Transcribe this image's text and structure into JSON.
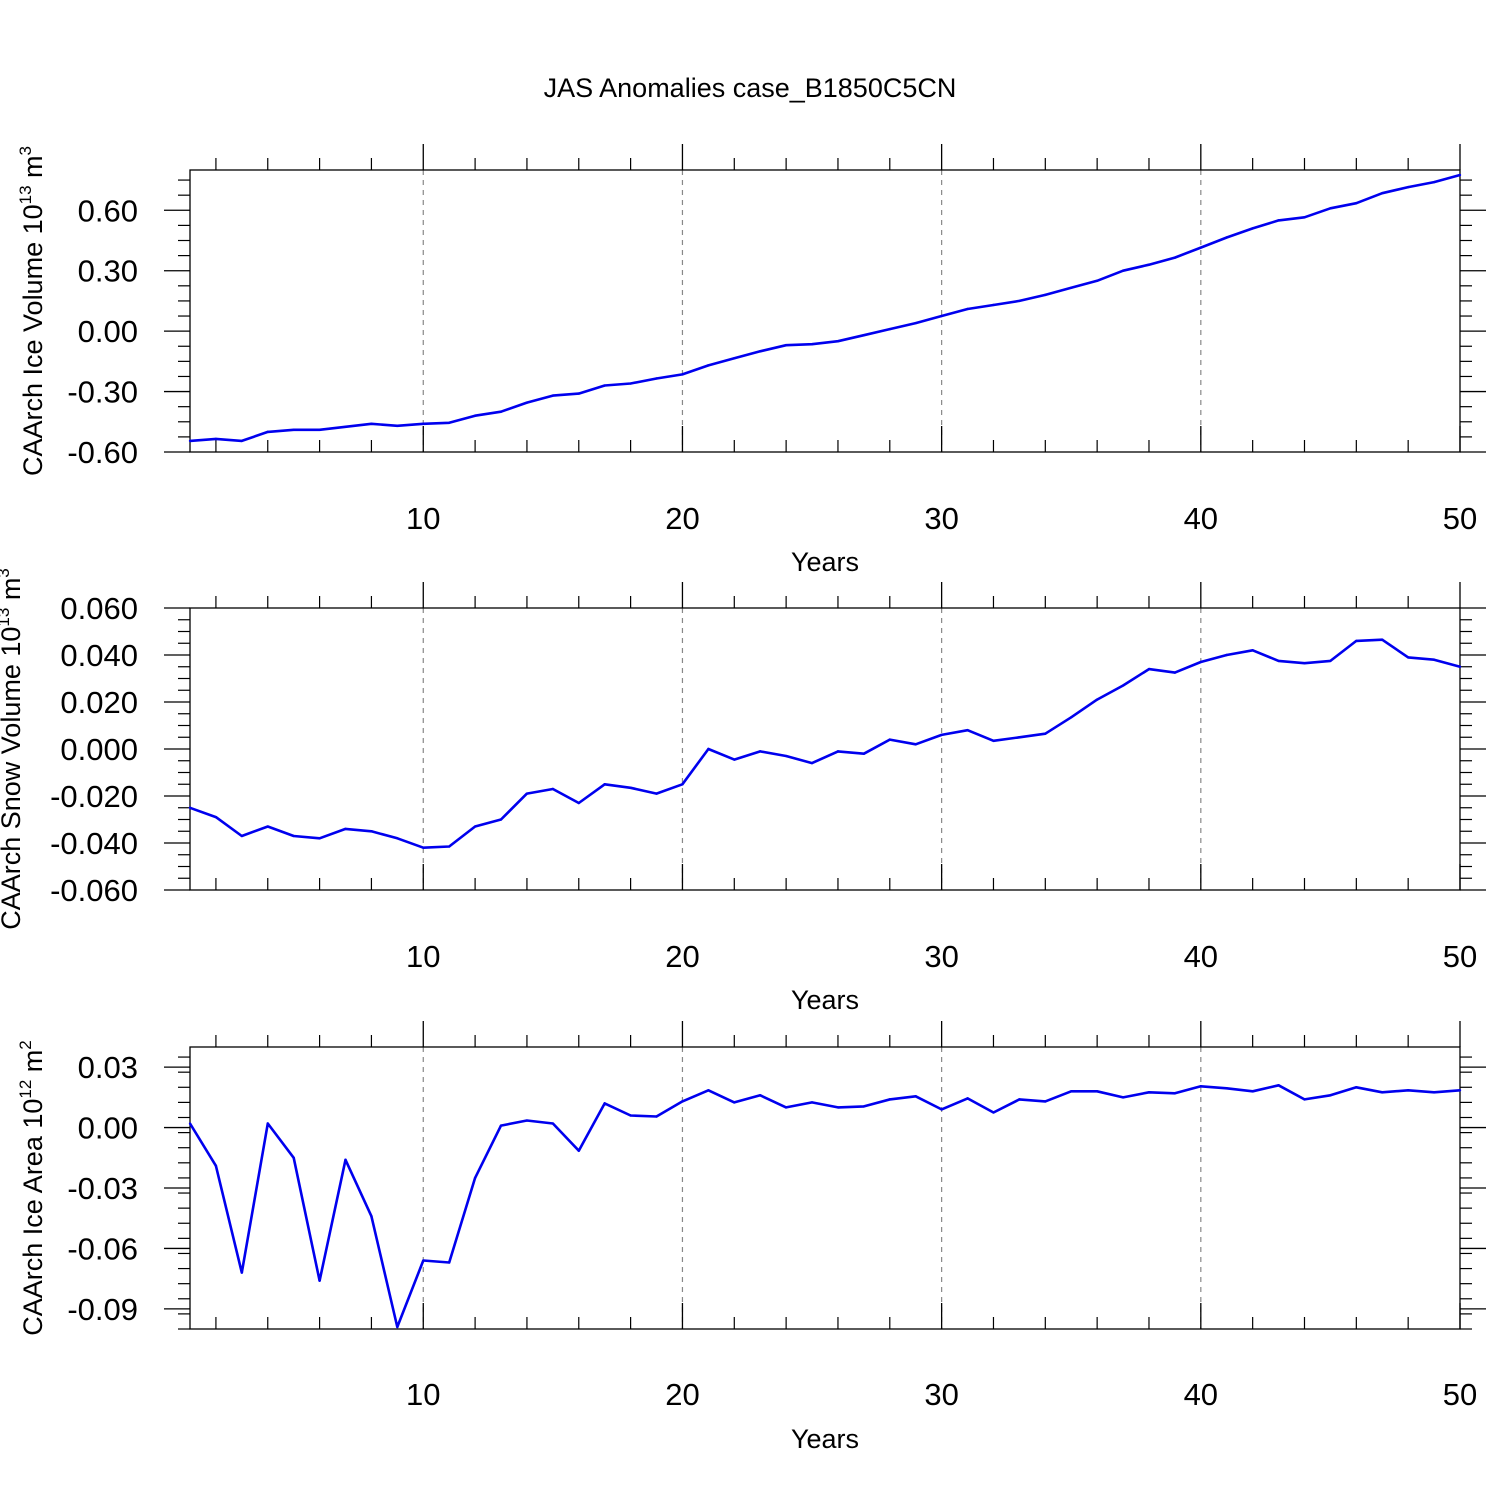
{
  "title": "JAS Anomalies case_B1850C5CN",
  "chart_data": [
    {
      "type": "line",
      "ylabel": "CAArch Ice Volume 10",
      "ylabel_exp": "13",
      "ylabel_unit": " m",
      "ylabel_unit_exp": "3",
      "xlabel": "Years",
      "xlim": [
        1,
        50
      ],
      "ylim": [
        -0.6,
        0.8
      ],
      "yticks": [
        "0.60",
        "0.30",
        "0.00",
        "-0.30",
        "-0.60"
      ],
      "xticks": [
        "10",
        "20",
        "30",
        "40",
        "50"
      ],
      "grid": "vertical dashed at major x ticks",
      "color": "#0000ee",
      "x": [
        1,
        2,
        3,
        4,
        5,
        6,
        7,
        8,
        9,
        10,
        11,
        12,
        13,
        14,
        15,
        16,
        17,
        18,
        19,
        20,
        21,
        22,
        23,
        24,
        25,
        26,
        27,
        28,
        29,
        30,
        31,
        32,
        33,
        34,
        35,
        36,
        37,
        38,
        39,
        40,
        41,
        42,
        43,
        44,
        45,
        46,
        47,
        48,
        49,
        50
      ],
      "values": [
        -0.545,
        -0.535,
        -0.545,
        -0.5,
        -0.49,
        -0.49,
        -0.475,
        -0.46,
        -0.47,
        -0.46,
        -0.455,
        -0.42,
        -0.4,
        -0.355,
        -0.32,
        -0.31,
        -0.27,
        -0.26,
        -0.235,
        -0.215,
        -0.17,
        -0.135,
        -0.1,
        -0.07,
        -0.065,
        -0.05,
        -0.02,
        0.01,
        0.04,
        0.075,
        0.11,
        0.13,
        0.15,
        0.18,
        0.215,
        0.25,
        0.3,
        0.33,
        0.365,
        0.415,
        0.465,
        0.51,
        0.55,
        0.565,
        0.61,
        0.635,
        0.685,
        0.715,
        0.74,
        0.775
      ]
    },
    {
      "type": "line",
      "ylabel": "CAArch Snow Volume 10",
      "ylabel_exp": "13",
      "ylabel_unit": " m",
      "ylabel_unit_exp": "3",
      "xlabel": "Years",
      "xlim": [
        1,
        50
      ],
      "ylim": [
        -0.06,
        0.06
      ],
      "yticks": [
        "0.060",
        "0.040",
        "0.020",
        "0.000",
        "-0.020",
        "-0.040",
        "-0.060"
      ],
      "xticks": [
        "10",
        "20",
        "30",
        "40",
        "50"
      ],
      "grid": "vertical dashed at major x ticks",
      "color": "#0000ee",
      "x": [
        1,
        2,
        3,
        4,
        5,
        6,
        7,
        8,
        9,
        10,
        11,
        12,
        13,
        14,
        15,
        16,
        17,
        18,
        19,
        20,
        21,
        22,
        23,
        24,
        25,
        26,
        27,
        28,
        29,
        30,
        31,
        32,
        33,
        34,
        35,
        36,
        37,
        38,
        39,
        40,
        41,
        42,
        43,
        44,
        45,
        46,
        47,
        48,
        49,
        50
      ],
      "values": [
        -0.025,
        -0.029,
        -0.037,
        -0.033,
        -0.037,
        -0.038,
        -0.034,
        -0.035,
        -0.038,
        -0.042,
        -0.0415,
        -0.033,
        -0.03,
        -0.019,
        -0.017,
        -0.023,
        -0.015,
        -0.0165,
        -0.019,
        -0.015,
        0.0,
        -0.0045,
        -0.001,
        -0.003,
        -0.006,
        -0.001,
        -0.002,
        0.004,
        0.002,
        0.006,
        0.008,
        0.0035,
        0.005,
        0.0065,
        0.0135,
        0.021,
        0.027,
        0.034,
        0.0325,
        0.037,
        0.04,
        0.042,
        0.0375,
        0.0365,
        0.0375,
        0.046,
        0.0465,
        0.039,
        0.038,
        0.035
      ]
    },
    {
      "type": "line",
      "ylabel": "CAArch Ice Area 10",
      "ylabel_exp": "12",
      "ylabel_unit": " m",
      "ylabel_unit_exp": "2",
      "xlabel": "Years",
      "xlim": [
        1,
        50
      ],
      "ylim": [
        -0.1,
        0.04
      ],
      "yticks": [
        "0.03",
        "0.00",
        "-0.03",
        "-0.06",
        "-0.09"
      ],
      "xticks": [
        "10",
        "20",
        "30",
        "40",
        "50"
      ],
      "grid": "vertical dashed at major x ticks",
      "color": "#0000ee",
      "x": [
        1,
        2,
        3,
        4,
        5,
        6,
        7,
        8,
        9,
        10,
        11,
        12,
        13,
        14,
        15,
        16,
        17,
        18,
        19,
        20,
        21,
        22,
        23,
        24,
        25,
        26,
        27,
        28,
        29,
        30,
        31,
        32,
        33,
        34,
        35,
        36,
        37,
        38,
        39,
        40,
        41,
        42,
        43,
        44,
        45,
        46,
        47,
        48,
        49,
        50
      ],
      "values": [
        0.002,
        -0.019,
        -0.072,
        0.002,
        -0.015,
        -0.076,
        -0.016,
        -0.044,
        -0.099,
        -0.066,
        -0.067,
        -0.025,
        0.001,
        0.0035,
        0.002,
        -0.0115,
        0.012,
        0.006,
        0.0055,
        0.013,
        0.0185,
        0.0125,
        0.016,
        0.01,
        0.0125,
        0.01,
        0.0105,
        0.014,
        0.0155,
        0.009,
        0.0145,
        0.0075,
        0.014,
        0.013,
        0.018,
        0.018,
        0.015,
        0.0175,
        0.017,
        0.0205,
        0.0195,
        0.018,
        0.021,
        0.014,
        0.016,
        0.02,
        0.0175,
        0.0185,
        0.0175,
        0.0185
      ]
    }
  ]
}
